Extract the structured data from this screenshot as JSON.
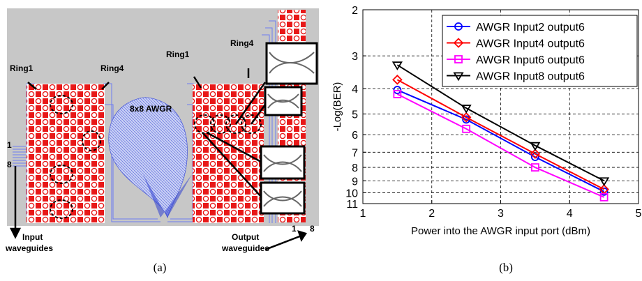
{
  "panel_a": {
    "caption": "(a)",
    "labels": {
      "ring1_left": "Ring1",
      "ring4_left": "Ring4",
      "awgr": "8x8 AWGR",
      "ring1_right": "Ring1",
      "ring4_right": "Ring4",
      "port_1_left": "1",
      "port_8_left": "8",
      "input_wg_1": "Input",
      "input_wg_2": "waveguides",
      "output_wg_1": "Output",
      "output_wg_2": "waveguides",
      "port_1_right": "1",
      "port_8_right": "8"
    }
  },
  "panel_b": {
    "caption": "(b)"
  },
  "chart_data": {
    "type": "line",
    "title": "",
    "xlabel": "Power into the AWGR input port (dBm)",
    "ylabel": "-Log(BER)",
    "xlim": [
      1,
      5
    ],
    "ylim": [
      2,
      11
    ],
    "y_scale": "log, inverted (10 at bottom)",
    "x_ticks": [
      1,
      2,
      3,
      4,
      5
    ],
    "y_ticks": [
      2,
      3,
      4,
      5,
      6,
      7,
      8,
      9,
      10,
      11
    ],
    "grid": true,
    "legend_position": "top-right",
    "series": [
      {
        "name": "AWGR Input2 output6",
        "color": "#0000ff",
        "marker": "circle",
        "x": [
          1.5,
          2.5,
          3.5,
          4.5
        ],
        "y": [
          4.05,
          5.25,
          7.3,
          9.9
        ]
      },
      {
        "name": "AWGR Input4 output6",
        "color": "#ff0000",
        "marker": "diamond",
        "x": [
          1.5,
          2.5,
          3.5,
          4.5
        ],
        "y": [
          3.7,
          5.15,
          7.1,
          9.7
        ]
      },
      {
        "name": "AWGR Input6 output6",
        "color": "#ff00ff",
        "marker": "square",
        "x": [
          1.5,
          2.5,
          3.5,
          4.5
        ],
        "y": [
          4.2,
          5.7,
          8.0,
          10.4
        ]
      },
      {
        "name": "AWGR Input8 output6",
        "color": "#000000",
        "marker": "triangle-down",
        "x": [
          1.5,
          2.5,
          3.5,
          4.5
        ],
        "y": [
          3.25,
          4.75,
          6.6,
          9.0
        ]
      }
    ]
  }
}
